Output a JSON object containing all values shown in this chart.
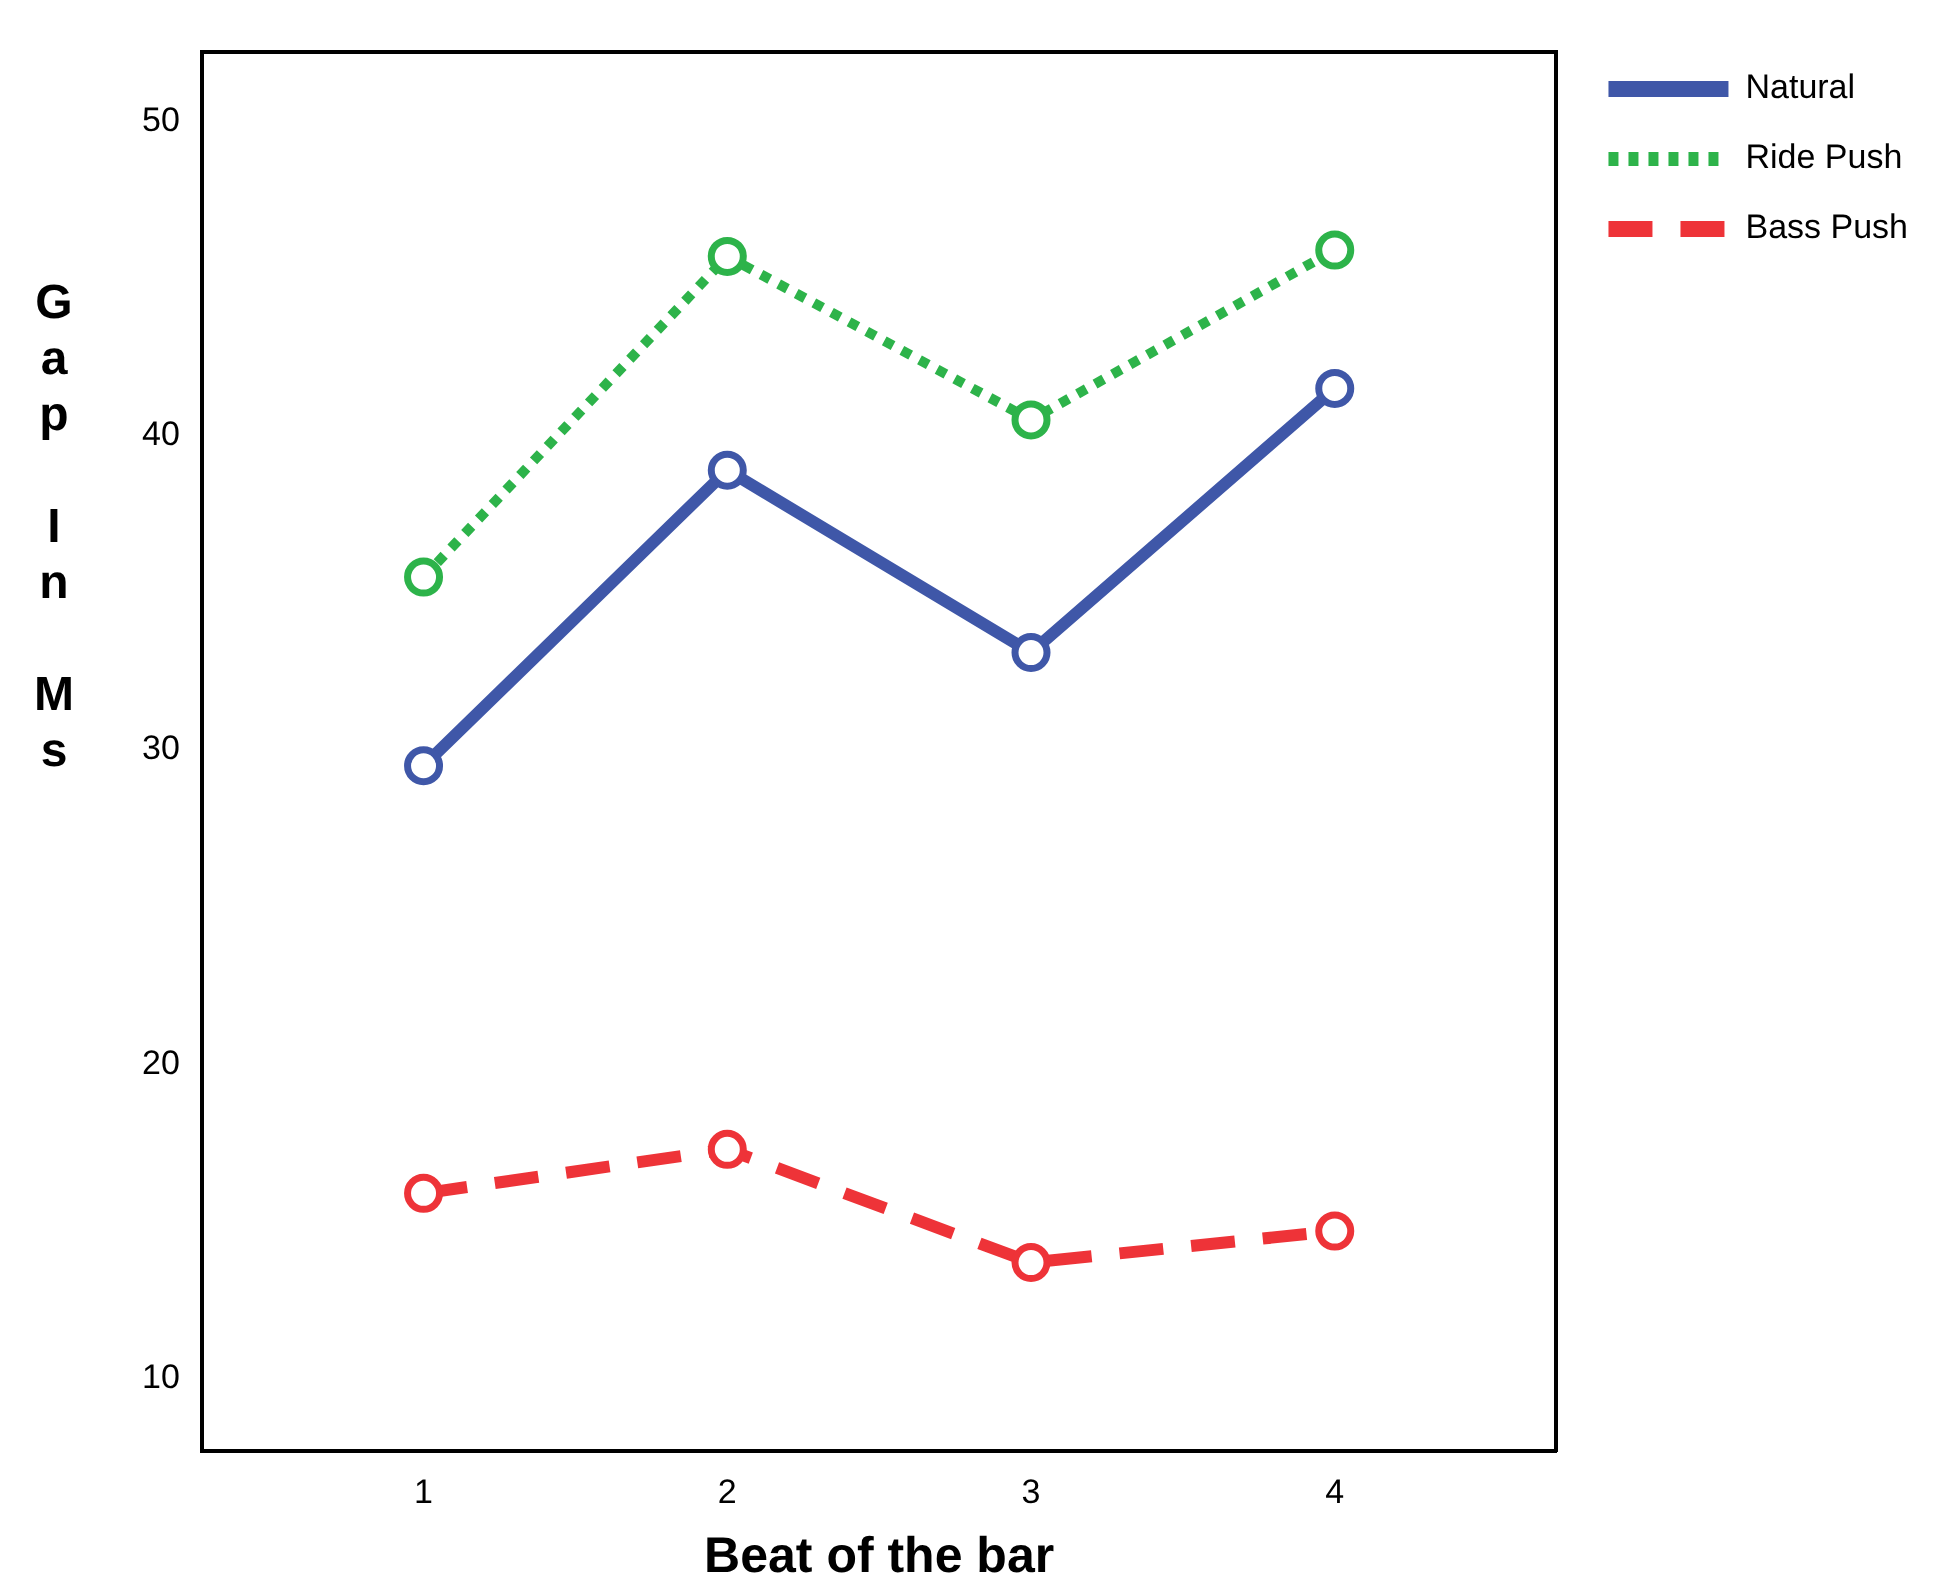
{
  "chart_data": {
    "type": "line",
    "xlabel": "Beat of the bar",
    "ylabel": "Gap In Ms",
    "x": [
      1,
      2,
      3,
      4
    ],
    "xlim": [
      0.27,
      4.73
    ],
    "xticks": [
      1,
      2,
      3,
      4
    ],
    "ylim": [
      7.7,
      52.2
    ],
    "yticks": [
      10,
      20,
      30,
      40,
      50
    ],
    "series": [
      {
        "name": "Natural",
        "color": "#3f57a8",
        "values": [
          29.5,
          38.9,
          33.1,
          41.5
        ],
        "line_style": "solid"
      },
      {
        "name": "Ride Push",
        "color": "#2db34a",
        "values": [
          35.5,
          45.7,
          40.5,
          45.9
        ],
        "line_style": "dotted"
      },
      {
        "name": "Bass Push",
        "color": "#ee3338",
        "values": [
          15.9,
          17.3,
          13.7,
          14.7
        ],
        "line_style": "dashed"
      }
    ],
    "marker": "circle",
    "grid": false,
    "legend": "top right"
  }
}
